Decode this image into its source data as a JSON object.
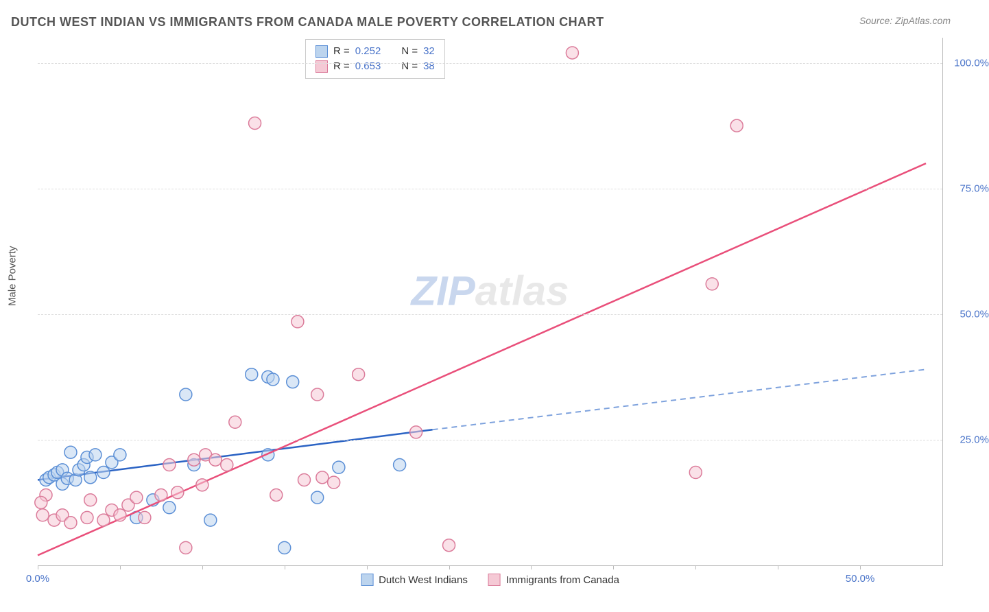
{
  "title": "DUTCH WEST INDIAN VS IMMIGRANTS FROM CANADA MALE POVERTY CORRELATION CHART",
  "source": "Source: ZipAtlas.com",
  "ylabel": "Male Poverty",
  "watermark_a": "ZIP",
  "watermark_b": "atlas",
  "chart": {
    "type": "scatter",
    "xlim": [
      0,
      55
    ],
    "ylim": [
      0,
      105
    ],
    "xticks": [
      0,
      5,
      10,
      15,
      20,
      25,
      30,
      35,
      40,
      45,
      50
    ],
    "xtick_labels": {
      "0": "0.0%",
      "50": "50.0%"
    },
    "yticks": [
      25,
      50,
      75,
      100
    ],
    "ytick_labels": {
      "25": "25.0%",
      "50": "50.0%",
      "75": "75.0%",
      "100": "100.0%"
    },
    "grid_color": "#dddddd",
    "background_color": "#ffffff",
    "axis_label_color": "#4a74c9",
    "border_color": "#bbbbbb",
    "marker_radius": 9,
    "marker_opacity": 0.55,
    "series": [
      {
        "name": "Dutch West Indians",
        "color_fill": "#bcd4ee",
        "color_stroke": "#5b8fd6",
        "R": "0.252",
        "N": "32",
        "regression": {
          "x1": 0,
          "y1": 17,
          "x2": 24,
          "y2": 27,
          "ext_x2": 54,
          "ext_y2": 39,
          "solid_color": "#2b63c4",
          "dash_color": "#7ea2dd"
        },
        "points": [
          [
            0.5,
            17
          ],
          [
            0.7,
            17.5
          ],
          [
            1.0,
            18
          ],
          [
            1.2,
            18.5
          ],
          [
            1.5,
            16.2
          ],
          [
            1.5,
            19
          ],
          [
            1.8,
            17.3
          ],
          [
            2.0,
            22.5
          ],
          [
            2.3,
            17
          ],
          [
            2.5,
            19
          ],
          [
            2.8,
            20
          ],
          [
            3.0,
            21.5
          ],
          [
            3.2,
            17.5
          ],
          [
            3.5,
            22
          ],
          [
            4.0,
            18.5
          ],
          [
            4.5,
            20.5
          ],
          [
            5.0,
            22
          ],
          [
            6.0,
            9.5
          ],
          [
            7.0,
            13
          ],
          [
            8.0,
            11.5
          ],
          [
            9.0,
            34
          ],
          [
            9.5,
            20
          ],
          [
            10.5,
            9
          ],
          [
            13.0,
            38
          ],
          [
            14.0,
            37.5
          ],
          [
            14.3,
            37
          ],
          [
            15.0,
            3.5
          ],
          [
            15.5,
            36.5
          ],
          [
            17.0,
            13.5
          ],
          [
            18.3,
            19.5
          ],
          [
            22.0,
            20
          ],
          [
            14.0,
            22
          ]
        ]
      },
      {
        "name": "Immigrants from Canada",
        "color_fill": "#f5c9d5",
        "color_stroke": "#db7b9a",
        "R": "0.653",
        "N": "38",
        "regression": {
          "x1": 0,
          "y1": 2,
          "x2": 54,
          "y2": 80,
          "solid_color": "#e94f7a"
        },
        "points": [
          [
            0.3,
            10
          ],
          [
            0.5,
            14
          ],
          [
            1.0,
            9
          ],
          [
            1.5,
            10
          ],
          [
            2.0,
            8.5
          ],
          [
            3.0,
            9.5
          ],
          [
            3.2,
            13
          ],
          [
            4.0,
            9
          ],
          [
            4.5,
            11
          ],
          [
            5.0,
            10
          ],
          [
            5.5,
            12
          ],
          [
            6.0,
            13.5
          ],
          [
            6.5,
            9.5
          ],
          [
            7.5,
            14
          ],
          [
            8.0,
            20
          ],
          [
            8.5,
            14.5
          ],
          [
            9.0,
            3.5
          ],
          [
            9.5,
            21
          ],
          [
            10.0,
            16
          ],
          [
            10.2,
            22
          ],
          [
            10.8,
            21
          ],
          [
            11.5,
            20
          ],
          [
            12.0,
            28.5
          ],
          [
            13.2,
            88
          ],
          [
            14.5,
            14
          ],
          [
            15.8,
            48.5
          ],
          [
            16.2,
            17
          ],
          [
            17.0,
            34
          ],
          [
            17.3,
            17.5
          ],
          [
            18.0,
            16.5
          ],
          [
            19.5,
            38
          ],
          [
            23.0,
            26.5
          ],
          [
            25.0,
            4
          ],
          [
            32.5,
            102
          ],
          [
            40.0,
            18.5
          ],
          [
            41.0,
            56
          ],
          [
            42.5,
            87.5
          ],
          [
            0.2,
            12.5
          ]
        ]
      }
    ]
  },
  "legend_labels": {
    "r_prefix": "R = ",
    "n_prefix": "N = "
  }
}
